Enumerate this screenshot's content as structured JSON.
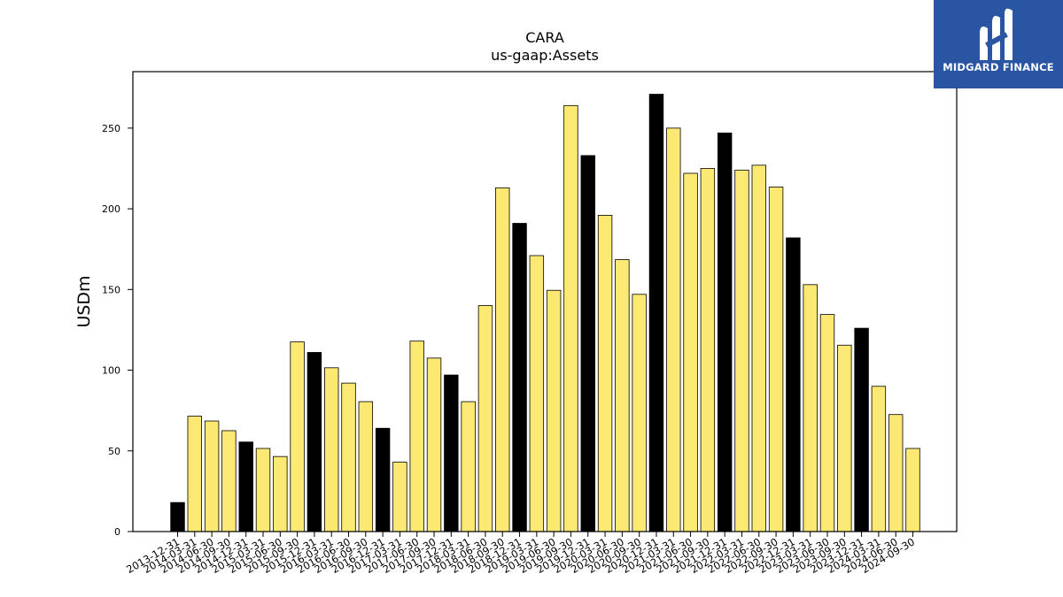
{
  "chart_data": {
    "type": "bar",
    "title": "CARA",
    "subtitle": "us-gaap:Assets",
    "xlabel": "",
    "ylabel": "USDm",
    "ylim": [
      0,
      285
    ],
    "yticks": [
      0,
      50,
      100,
      150,
      200,
      250
    ],
    "grid": false,
    "legend": "none",
    "colors": {
      "fiscal_year_end": "#000000",
      "quarter": "#fce974",
      "edge": "#000000"
    },
    "categories": [
      "2013-12-31",
      "2014-03-31",
      "2014-06-30",
      "2014-09-30",
      "2014-12-31",
      "2015-03-31",
      "2015-06-30",
      "2015-09-30",
      "2015-12-31",
      "2016-03-31",
      "2016-06-30",
      "2016-09-30",
      "2016-12-31",
      "2017-03-31",
      "2017-06-30",
      "2017-09-30",
      "2017-12-31",
      "2018-03-31",
      "2018-06-30",
      "2018-09-30",
      "2018-12-31",
      "2019-03-31",
      "2019-06-30",
      "2019-09-30",
      "2019-12-31",
      "2020-03-31",
      "2020-06-30",
      "2020-09-30",
      "2020-12-31",
      "2021-03-31",
      "2021-06-30",
      "2021-09-30",
      "2021-12-31",
      "2022-03-31",
      "2022-06-30",
      "2022-09-30",
      "2022-12-31",
      "2023-03-31",
      "2023-06-30",
      "2023-09-30",
      "2023-12-31",
      "2024-03-31",
      "2024-06-30",
      "2024-09-30"
    ],
    "values": [
      18,
      71.5,
      68.5,
      62.5,
      55.5,
      51.5,
      46.5,
      117.5,
      111,
      101.5,
      92,
      80.5,
      64,
      43,
      118,
      107.5,
      97,
      80.5,
      140,
      213,
      191,
      171,
      149.5,
      264,
      233,
      196,
      168.5,
      147,
      271,
      250,
      222,
      225,
      247,
      224,
      227,
      213.5,
      182,
      153,
      134.5,
      115.5,
      126,
      90,
      72.5,
      51.5
    ],
    "highlight": [
      true,
      false,
      false,
      false,
      true,
      false,
      false,
      false,
      true,
      false,
      false,
      false,
      true,
      false,
      false,
      false,
      true,
      false,
      false,
      false,
      true,
      false,
      false,
      false,
      true,
      false,
      false,
      false,
      true,
      false,
      false,
      false,
      true,
      false,
      false,
      false,
      true,
      false,
      false,
      false,
      true,
      false,
      false,
      false
    ]
  },
  "logo": {
    "text": "MIDGARD FINANCE",
    "background": "#2a55a3"
  }
}
